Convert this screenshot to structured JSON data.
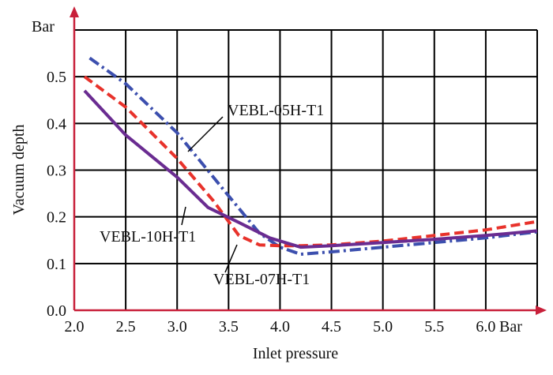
{
  "chart_data": {
    "type": "line",
    "xlabel": "Inlet pressure",
    "ylabel": "Vacuum depth",
    "x_unit": "Bar",
    "y_unit": "Bar",
    "xlim": [
      2.0,
      6.5
    ],
    "ylim": [
      0.0,
      0.6
    ],
    "x_ticks": [
      "2.0",
      "2.5",
      "3.0",
      "3.5",
      "4.0",
      "4.5",
      "5.0",
      "5.5",
      "6.0"
    ],
    "y_ticks": [
      "0.0",
      "0.1",
      "0.2",
      "0.3",
      "0.4",
      "0.5"
    ],
    "grid": true,
    "series": [
      {
        "name": "VEBL-05H-T1",
        "color": "#3c4fae",
        "style": "dash-dot",
        "x": [
          2.15,
          2.5,
          3.0,
          3.5,
          3.8,
          4.0,
          4.2,
          4.5,
          5.0,
          5.5,
          6.0,
          6.5
        ],
        "y": [
          0.54,
          0.485,
          0.38,
          0.245,
          0.165,
          0.135,
          0.12,
          0.125,
          0.135,
          0.145,
          0.155,
          0.168
        ]
      },
      {
        "name": "VEBL-07H-T1",
        "color": "#e8322b",
        "style": "dash",
        "x": [
          2.1,
          2.5,
          3.0,
          3.35,
          3.6,
          3.8,
          4.0,
          4.2,
          4.5,
          5.0,
          5.5,
          6.0,
          6.5
        ],
        "y": [
          0.5,
          0.435,
          0.325,
          0.235,
          0.16,
          0.14,
          0.138,
          0.138,
          0.14,
          0.148,
          0.16,
          0.172,
          0.19
        ]
      },
      {
        "name": "VEBL-10H-T1",
        "color": "#6a2c91",
        "style": "solid",
        "x": [
          2.1,
          2.5,
          3.0,
          3.3,
          3.6,
          3.9,
          4.2,
          4.5,
          5.0,
          5.5,
          6.0,
          6.5
        ],
        "y": [
          0.47,
          0.375,
          0.285,
          0.22,
          0.188,
          0.155,
          0.135,
          0.138,
          0.145,
          0.152,
          0.16,
          0.17
        ]
      }
    ],
    "annotations": [
      {
        "label": "VEBL-05H-T1",
        "series": "VEBL-05H-T1"
      },
      {
        "label": "VEBL-10H-T1",
        "series": "VEBL-10H-T1"
      },
      {
        "label": "VEBL-07H-T1",
        "series": "VEBL-07H-T1"
      }
    ]
  }
}
